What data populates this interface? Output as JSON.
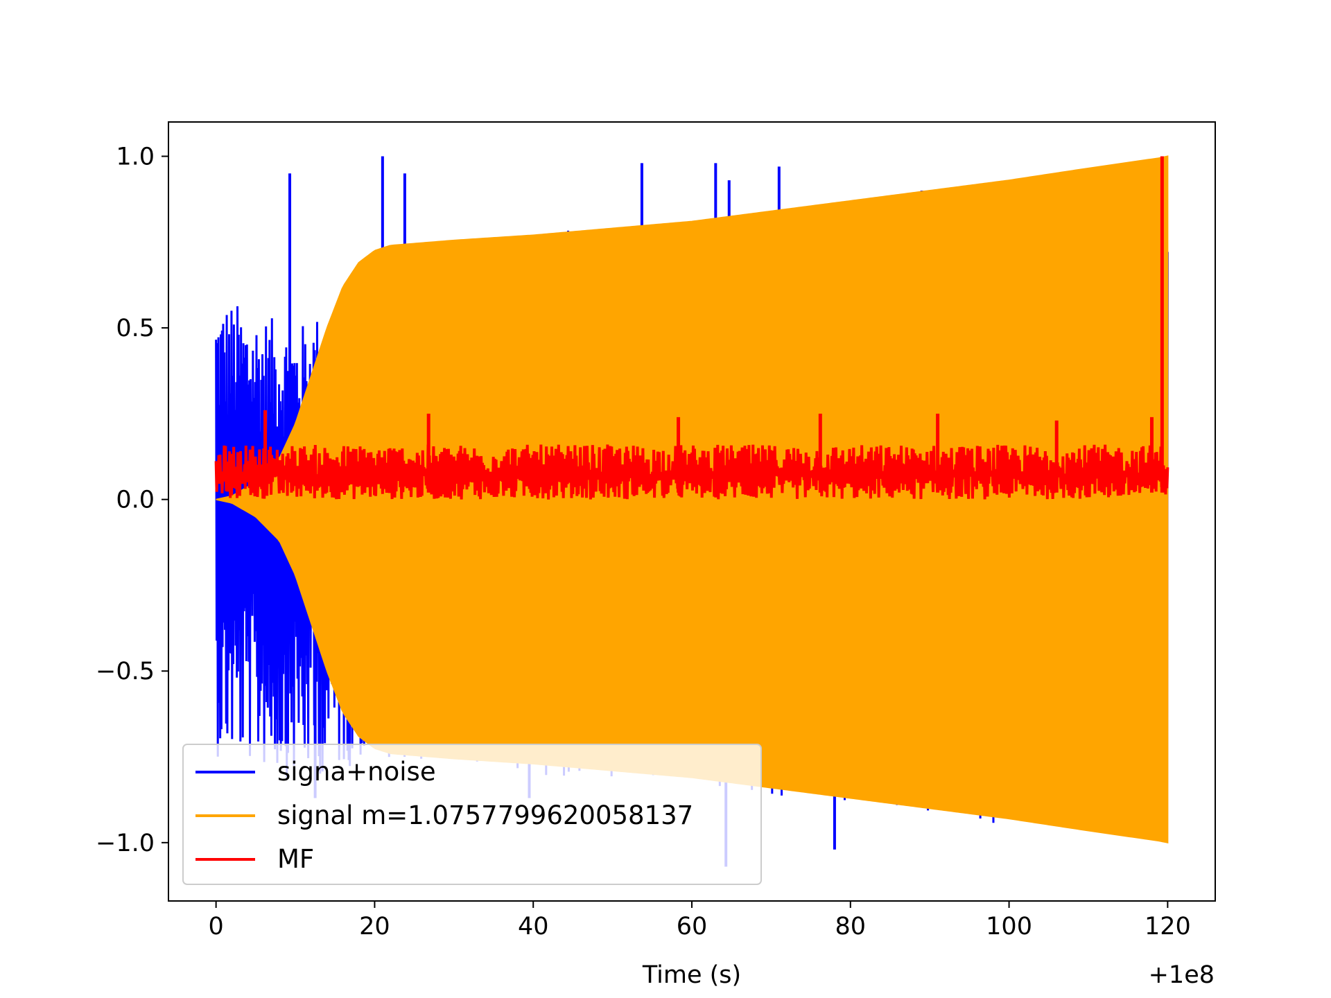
{
  "chart_data": {
    "type": "line",
    "title": "",
    "xlabel": "Time (s)",
    "ylabel": "",
    "x_offset_label": "+1e8",
    "xlim": [
      -6,
      126
    ],
    "ylim": [
      -1.17,
      1.1
    ],
    "xticks": [
      {
        "value": 0,
        "label": "0"
      },
      {
        "value": 20,
        "label": "20"
      },
      {
        "value": 40,
        "label": "40"
      },
      {
        "value": 60,
        "label": "60"
      },
      {
        "value": 80,
        "label": "80"
      },
      {
        "value": 100,
        "label": "100"
      },
      {
        "value": 120,
        "label": "120"
      }
    ],
    "yticks": [
      {
        "value": 1.0,
        "label": "1.0"
      },
      {
        "value": 0.5,
        "label": "0.5"
      },
      {
        "value": 0.0,
        "label": "0.0"
      },
      {
        "value": -0.5,
        "label": "−0.5"
      },
      {
        "value": -1.0,
        "label": "−1.0"
      }
    ],
    "grid": false,
    "legend_position": "lower-left",
    "series": [
      {
        "name": "signa+noise",
        "color": "#0000ff",
        "style": "noisy signal, large spikes up to about ±1.0 early, mostly hidden behind signal envelope",
        "envelope_upper": [
          [
            0,
            0.6
          ],
          [
            5,
            0.55
          ],
          [
            10,
            0.5
          ],
          [
            15,
            0.58
          ],
          [
            20,
            0.72
          ],
          [
            30,
            0.76
          ],
          [
            50,
            0.8
          ],
          [
            70,
            0.84
          ],
          [
            90,
            0.9
          ],
          [
            120,
            0.95
          ]
        ],
        "envelope_lower": [
          [
            0,
            -0.75
          ],
          [
            5,
            -0.78
          ],
          [
            10,
            -0.82
          ],
          [
            15,
            -0.8
          ],
          [
            20,
            -0.75
          ],
          [
            40,
            -0.8
          ],
          [
            60,
            -0.85
          ],
          [
            80,
            -0.9
          ],
          [
            100,
            -0.95
          ],
          [
            120,
            -1.0
          ]
        ],
        "spikes": [
          [
            9.3,
            0.95
          ],
          [
            21,
            1.0
          ],
          [
            23.8,
            0.95
          ],
          [
            53.7,
            0.98
          ],
          [
            63,
            0.98
          ],
          [
            64.7,
            0.93
          ],
          [
            71,
            0.97
          ],
          [
            89,
            0.9
          ],
          [
            78,
            -1.02
          ],
          [
            64.3,
            -1.07
          ],
          [
            39.5,
            -0.87
          ],
          [
            12.5,
            -0.87
          ]
        ]
      },
      {
        "name": "signal m=1.0757799620058137",
        "color": "#ffa500",
        "style": "rapidly oscillating chirp filling its envelope",
        "envelope": [
          [
            0,
            0.0
          ],
          [
            2,
            0.01
          ],
          [
            5,
            0.05
          ],
          [
            8,
            0.12
          ],
          [
            10,
            0.22
          ],
          [
            12,
            0.36
          ],
          [
            14,
            0.5
          ],
          [
            16,
            0.62
          ],
          [
            18,
            0.69
          ],
          [
            20,
            0.725
          ],
          [
            22,
            0.74
          ],
          [
            30,
            0.755
          ],
          [
            40,
            0.77
          ],
          [
            50,
            0.79
          ],
          [
            55,
            0.8
          ],
          [
            60,
            0.81
          ],
          [
            70,
            0.84
          ],
          [
            80,
            0.87
          ],
          [
            90,
            0.9
          ],
          [
            100,
            0.93
          ],
          [
            110,
            0.965
          ],
          [
            119,
            0.995
          ],
          [
            120,
            1.0
          ]
        ]
      },
      {
        "name": "MF",
        "color": "#ff0000",
        "style": "matched-filter output, noisy band around 0.07 with a single peak at the end",
        "baseline": 0.07,
        "band": [
          0.0,
          0.16
        ],
        "spikes": [
          [
            6.2,
            0.26
          ],
          [
            26.8,
            0.25
          ],
          [
            58.3,
            0.24
          ],
          [
            76.2,
            0.25
          ],
          [
            91,
            0.25
          ],
          [
            106,
            0.23
          ],
          [
            118,
            0.24
          ],
          [
            119.3,
            1.0
          ]
        ]
      }
    ]
  }
}
